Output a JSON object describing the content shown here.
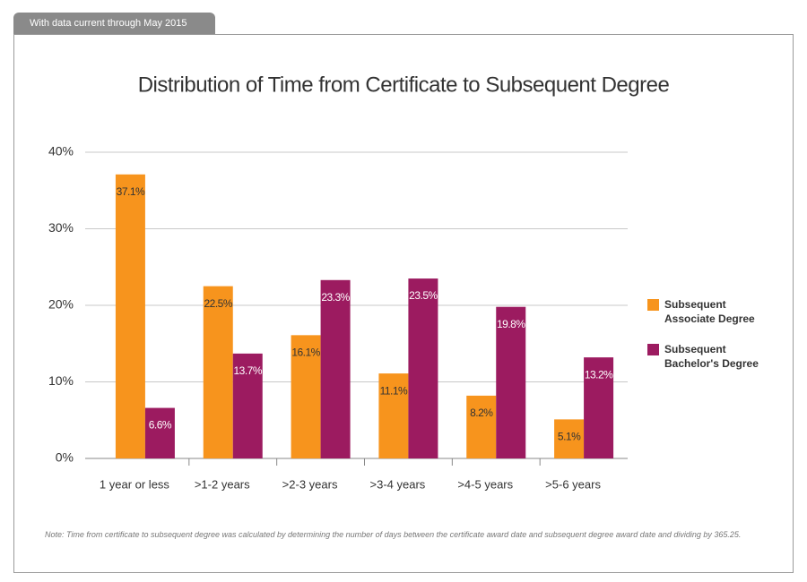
{
  "header": "With data current through May 2015",
  "chart_data": {
    "type": "bar",
    "title": "Distribution of Time from Certificate to Subsequent Degree",
    "categories": [
      "1 year or less",
      ">1-2 years",
      ">2-3 years",
      ">3-4 years",
      ">4-5 years",
      ">5-6 years"
    ],
    "series": [
      {
        "name": "Subsequent Associate Degree",
        "color": "#f7941d",
        "values": [
          37.1,
          22.5,
          16.1,
          11.1,
          8.2,
          5.1
        ],
        "value_labels": [
          "37.1%",
          "22.5%",
          "16.1%",
          "11.1%",
          "8.2%",
          "5.1%"
        ]
      },
      {
        "name": "Subsequent Bachelor's Degree",
        "color": "#9c1b60",
        "values": [
          6.6,
          13.7,
          23.3,
          23.5,
          19.8,
          13.2
        ],
        "value_labels": [
          "6.6%",
          "13.7%",
          "23.3%",
          "23.5%",
          "19.8%",
          "13.2%"
        ]
      }
    ],
    "ylim": [
      0,
      40
    ],
    "yticks": [
      {
        "value": 0,
        "label": "0%"
      },
      {
        "value": 10,
        "label": "10%"
      },
      {
        "value": 20,
        "label": "20%"
      },
      {
        "value": 30,
        "label": "30%"
      },
      {
        "value": 40,
        "label": "40%"
      }
    ],
    "grid": true,
    "legend": "right"
  },
  "note": "Note: Time from certificate to subsequent degree was calculated by determining the number of days between the certificate award date and subsequent degree award date and dividing by 365.25."
}
